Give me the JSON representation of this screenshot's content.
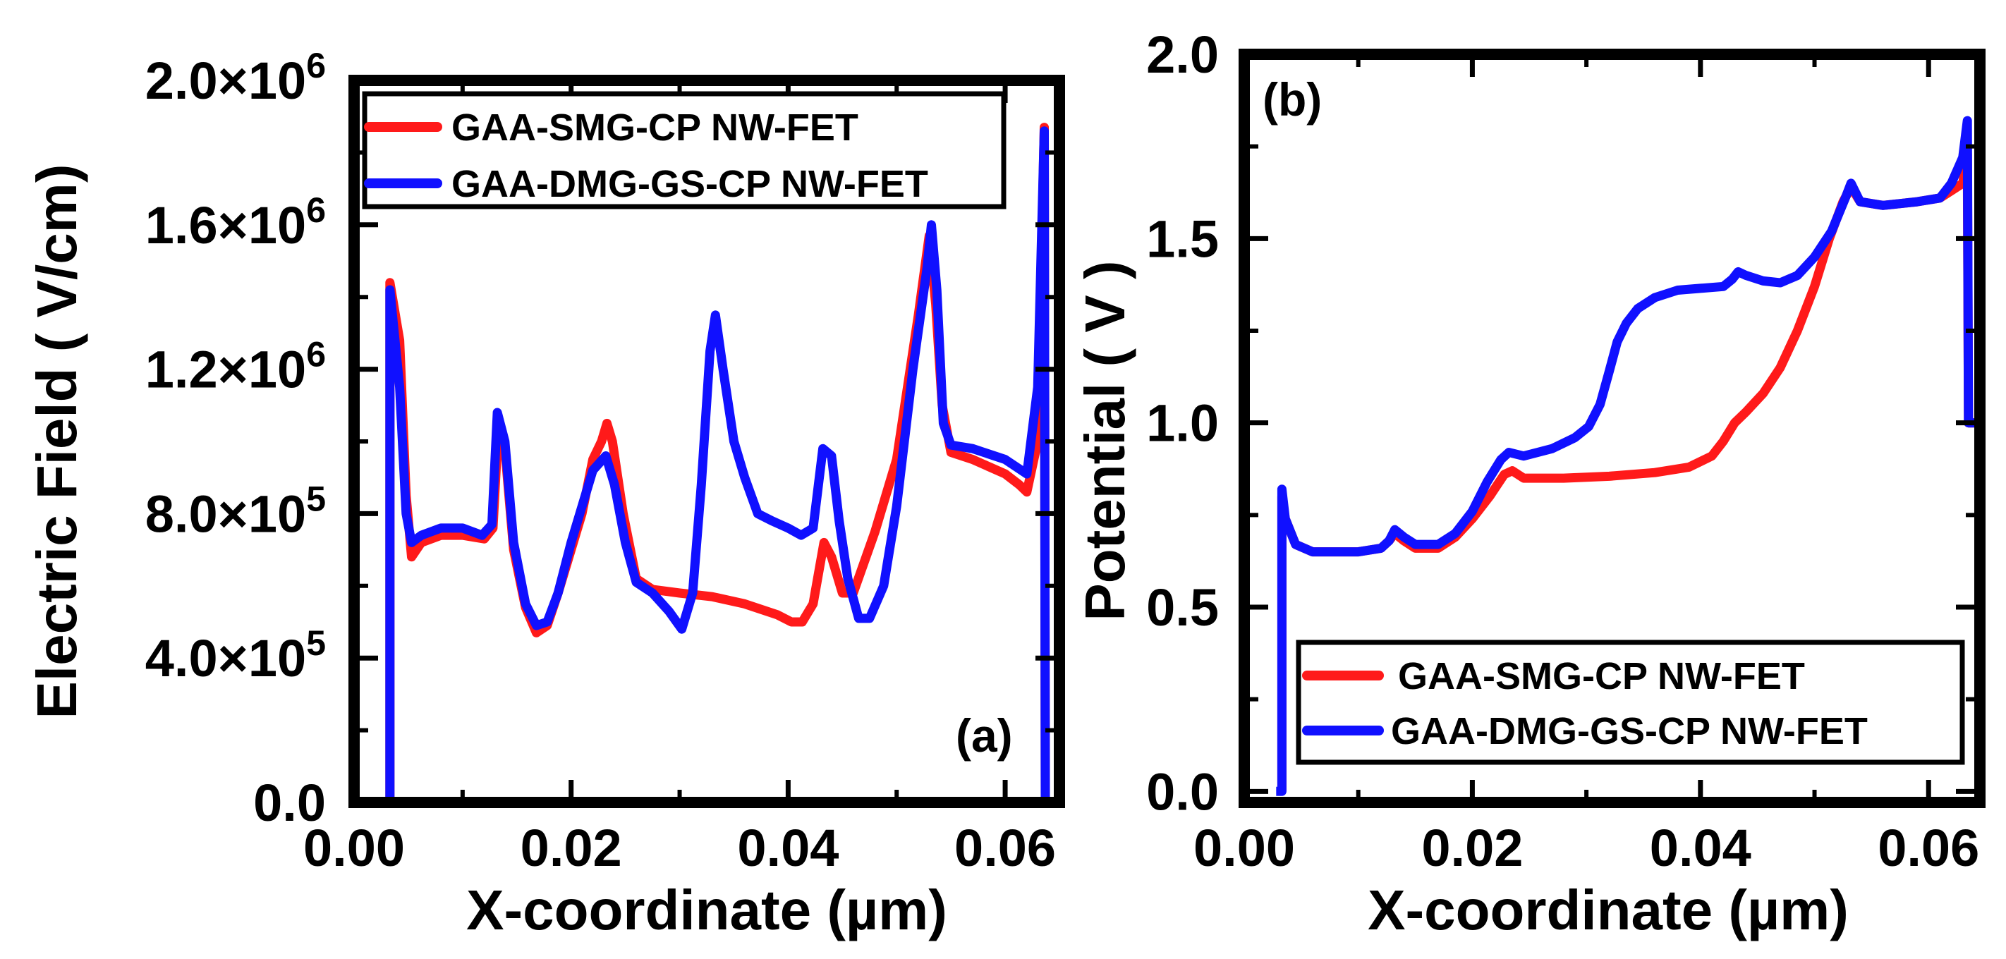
{
  "colors": {
    "red_series": "#ff1a1a",
    "blue_series": "#1010ff",
    "axes": "#000000",
    "background": "#ffffff"
  },
  "chart_data": [
    {
      "type": "line",
      "panel_label": "(a)",
      "xlabel": "X-coordinate (µm)",
      "ylabel": "Electric Field ( V/cm)",
      "xlim": [
        0.0,
        0.065
      ],
      "ylim": [
        0,
        2000000
      ],
      "x_ticks": [
        0.0,
        0.02,
        0.04,
        0.06
      ],
      "x_tick_labels": [
        "0.00",
        "0.02",
        "0.04",
        "0.06"
      ],
      "y_ticks": [
        0,
        400000,
        800000,
        1200000,
        1600000,
        2000000
      ],
      "y_tick_labels": [
        {
          "mantissa": "0.0",
          "exp": ""
        },
        {
          "mantissa": "4.0×10",
          "exp": "5"
        },
        {
          "mantissa": "8.0×10",
          "exp": "5"
        },
        {
          "mantissa": "1.2×10",
          "exp": "6"
        },
        {
          "mantissa": "1.6×10",
          "exp": "6"
        },
        {
          "mantissa": "2.0×10",
          "exp": "6"
        }
      ],
      "legend_position": "top",
      "series": [
        {
          "name": "GAA-SMG-CP NW-FET",
          "color": "#ff1a1a",
          "points": [
            [
              0.0033,
              0
            ],
            [
              0.0033,
              1440000
            ],
            [
              0.0042,
              1280000
            ],
            [
              0.0048,
              850000
            ],
            [
              0.0053,
              680000
            ],
            [
              0.0062,
              720000
            ],
            [
              0.008,
              740000
            ],
            [
              0.01,
              740000
            ],
            [
              0.012,
              730000
            ],
            [
              0.0128,
              760000
            ],
            [
              0.0133,
              1040000
            ],
            [
              0.0139,
              980000
            ],
            [
              0.0147,
              700000
            ],
            [
              0.0158,
              540000
            ],
            [
              0.0168,
              470000
            ],
            [
              0.0178,
              490000
            ],
            [
              0.0188,
              580000
            ],
            [
              0.02,
              700000
            ],
            [
              0.021,
              800000
            ],
            [
              0.022,
              950000
            ],
            [
              0.0228,
              1000000
            ],
            [
              0.0233,
              1050000
            ],
            [
              0.0238,
              1000000
            ],
            [
              0.0248,
              800000
            ],
            [
              0.026,
              620000
            ],
            [
              0.0275,
              590000
            ],
            [
              0.03,
              580000
            ],
            [
              0.033,
              570000
            ],
            [
              0.036,
              550000
            ],
            [
              0.039,
              520000
            ],
            [
              0.0403,
              500000
            ],
            [
              0.0413,
              500000
            ],
            [
              0.0423,
              550000
            ],
            [
              0.0433,
              720000
            ],
            [
              0.044,
              680000
            ],
            [
              0.045,
              580000
            ],
            [
              0.046,
              580000
            ],
            [
              0.048,
              750000
            ],
            [
              0.05,
              950000
            ],
            [
              0.052,
              1350000
            ],
            [
              0.053,
              1570000
            ],
            [
              0.0536,
              1380000
            ],
            [
              0.0542,
              1100000
            ],
            [
              0.055,
              970000
            ],
            [
              0.057,
              950000
            ],
            [
              0.06,
              910000
            ],
            [
              0.0613,
              880000
            ],
            [
              0.062,
              860000
            ],
            [
              0.063,
              1000000
            ],
            [
              0.0636,
              1870000
            ],
            [
              0.0637,
              0
            ]
          ]
        },
        {
          "name": "GAA-DMG-GS-CP NW-FET",
          "color": "#1010ff",
          "points": [
            [
              0.0033,
              0
            ],
            [
              0.0033,
              1420000
            ],
            [
              0.0042,
              1150000
            ],
            [
              0.0048,
              800000
            ],
            [
              0.0053,
              720000
            ],
            [
              0.0062,
              740000
            ],
            [
              0.008,
              760000
            ],
            [
              0.01,
              760000
            ],
            [
              0.0118,
              740000
            ],
            [
              0.0127,
              770000
            ],
            [
              0.0132,
              1080000
            ],
            [
              0.0139,
              1000000
            ],
            [
              0.0147,
              720000
            ],
            [
              0.0158,
              550000
            ],
            [
              0.0168,
              490000
            ],
            [
              0.0178,
              500000
            ],
            [
              0.0188,
              580000
            ],
            [
              0.02,
              720000
            ],
            [
              0.021,
              820000
            ],
            [
              0.022,
              920000
            ],
            [
              0.0232,
              960000
            ],
            [
              0.024,
              880000
            ],
            [
              0.025,
              720000
            ],
            [
              0.026,
              610000
            ],
            [
              0.0275,
              580000
            ],
            [
              0.029,
              530000
            ],
            [
              0.0302,
              480000
            ],
            [
              0.0312,
              580000
            ],
            [
              0.032,
              880000
            ],
            [
              0.0328,
              1250000
            ],
            [
              0.0333,
              1350000
            ],
            [
              0.034,
              1200000
            ],
            [
              0.035,
              1000000
            ],
            [
              0.036,
              900000
            ],
            [
              0.0372,
              800000
            ],
            [
              0.0385,
              780000
            ],
            [
              0.04,
              760000
            ],
            [
              0.0412,
              740000
            ],
            [
              0.0423,
              760000
            ],
            [
              0.0432,
              980000
            ],
            [
              0.044,
              960000
            ],
            [
              0.0447,
              780000
            ],
            [
              0.0455,
              620000
            ],
            [
              0.0465,
              510000
            ],
            [
              0.0475,
              510000
            ],
            [
              0.0488,
              600000
            ],
            [
              0.05,
              820000
            ],
            [
              0.0515,
              1200000
            ],
            [
              0.0528,
              1480000
            ],
            [
              0.0532,
              1600000
            ],
            [
              0.0537,
              1420000
            ],
            [
              0.0543,
              1050000
            ],
            [
              0.055,
              990000
            ],
            [
              0.057,
              980000
            ],
            [
              0.06,
              950000
            ],
            [
              0.062,
              910000
            ],
            [
              0.063,
              1150000
            ],
            [
              0.0636,
              1860000
            ],
            [
              0.0637,
              0
            ]
          ]
        }
      ]
    },
    {
      "type": "line",
      "panel_label": "(b)",
      "xlabel": "X-coordinate (µm)",
      "ylabel": "Potential ( V )",
      "xlim": [
        0.0,
        0.0645
      ],
      "ylim": [
        -0.03,
        2.0
      ],
      "x_ticks": [
        0.0,
        0.02,
        0.04,
        0.06
      ],
      "x_tick_labels": [
        "0.00",
        "0.02",
        "0.04",
        "0.06"
      ],
      "y_ticks": [
        0.0,
        0.5,
        1.0,
        1.5,
        2.0
      ],
      "y_tick_labels": [
        "0.0",
        "0.5",
        "1.0",
        "1.5",
        "2.0"
      ],
      "legend_position": "bottom-right",
      "series": [
        {
          "name": "GAA-SMG-CP NW-FET",
          "color": "#ff1a1a",
          "points": [
            [
              0.0033,
              0.0
            ],
            [
              0.0033,
              0.8
            ],
            [
              0.0036,
              0.74
            ],
            [
              0.0045,
              0.67
            ],
            [
              0.006,
              0.65
            ],
            [
              0.01,
              0.65
            ],
            [
              0.012,
              0.66
            ],
            [
              0.0127,
              0.68
            ],
            [
              0.0132,
              0.7
            ],
            [
              0.014,
              0.68
            ],
            [
              0.015,
              0.66
            ],
            [
              0.017,
              0.66
            ],
            [
              0.0185,
              0.69
            ],
            [
              0.02,
              0.74
            ],
            [
              0.0215,
              0.8
            ],
            [
              0.0228,
              0.86
            ],
            [
              0.0235,
              0.87
            ],
            [
              0.0245,
              0.85
            ],
            [
              0.028,
              0.85
            ],
            [
              0.032,
              0.855
            ],
            [
              0.036,
              0.865
            ],
            [
              0.039,
              0.88
            ],
            [
              0.041,
              0.91
            ],
            [
              0.042,
              0.95
            ],
            [
              0.043,
              1.0
            ],
            [
              0.044,
              1.03
            ],
            [
              0.0455,
              1.08
            ],
            [
              0.047,
              1.15
            ],
            [
              0.0485,
              1.25
            ],
            [
              0.05,
              1.37
            ],
            [
              0.0513,
              1.5
            ],
            [
              0.0525,
              1.6
            ],
            [
              0.0532,
              1.64
            ],
            [
              0.054,
              1.6
            ],
            [
              0.056,
              1.59
            ],
            [
              0.059,
              1.6
            ],
            [
              0.061,
              1.61
            ],
            [
              0.062,
              1.63
            ],
            [
              0.063,
              1.65
            ],
            [
              0.0634,
              1.73
            ],
            [
              0.0635,
              1.0
            ],
            [
              0.0645,
              1.0
            ]
          ]
        },
        {
          "name": "GAA-DMG-GS-CP NW-FET",
          "color": "#1010ff",
          "points": [
            [
              0.0028,
              0.0
            ],
            [
              0.0033,
              0.0
            ],
            [
              0.0033,
              0.82
            ],
            [
              0.0036,
              0.74
            ],
            [
              0.0045,
              0.67
            ],
            [
              0.006,
              0.65
            ],
            [
              0.01,
              0.65
            ],
            [
              0.012,
              0.66
            ],
            [
              0.0127,
              0.68
            ],
            [
              0.0132,
              0.71
            ],
            [
              0.014,
              0.69
            ],
            [
              0.015,
              0.67
            ],
            [
              0.017,
              0.67
            ],
            [
              0.0185,
              0.7
            ],
            [
              0.02,
              0.76
            ],
            [
              0.0213,
              0.84
            ],
            [
              0.0225,
              0.9
            ],
            [
              0.0232,
              0.92
            ],
            [
              0.0245,
              0.91
            ],
            [
              0.027,
              0.93
            ],
            [
              0.029,
              0.96
            ],
            [
              0.0302,
              0.99
            ],
            [
              0.0312,
              1.05
            ],
            [
              0.032,
              1.14
            ],
            [
              0.0327,
              1.22
            ],
            [
              0.0335,
              1.27
            ],
            [
              0.0345,
              1.31
            ],
            [
              0.036,
              1.34
            ],
            [
              0.038,
              1.36
            ],
            [
              0.04,
              1.365
            ],
            [
              0.042,
              1.37
            ],
            [
              0.0428,
              1.39
            ],
            [
              0.0433,
              1.41
            ],
            [
              0.044,
              1.4
            ],
            [
              0.0455,
              1.385
            ],
            [
              0.047,
              1.38
            ],
            [
              0.0485,
              1.4
            ],
            [
              0.05,
              1.45
            ],
            [
              0.0515,
              1.52
            ],
            [
              0.0527,
              1.61
            ],
            [
              0.0532,
              1.65
            ],
            [
              0.054,
              1.6
            ],
            [
              0.056,
              1.59
            ],
            [
              0.059,
              1.6
            ],
            [
              0.061,
              1.61
            ],
            [
              0.062,
              1.65
            ],
            [
              0.063,
              1.72
            ],
            [
              0.0634,
              1.82
            ],
            [
              0.0635,
              1.0
            ],
            [
              0.0645,
              1.0
            ]
          ]
        }
      ]
    }
  ]
}
